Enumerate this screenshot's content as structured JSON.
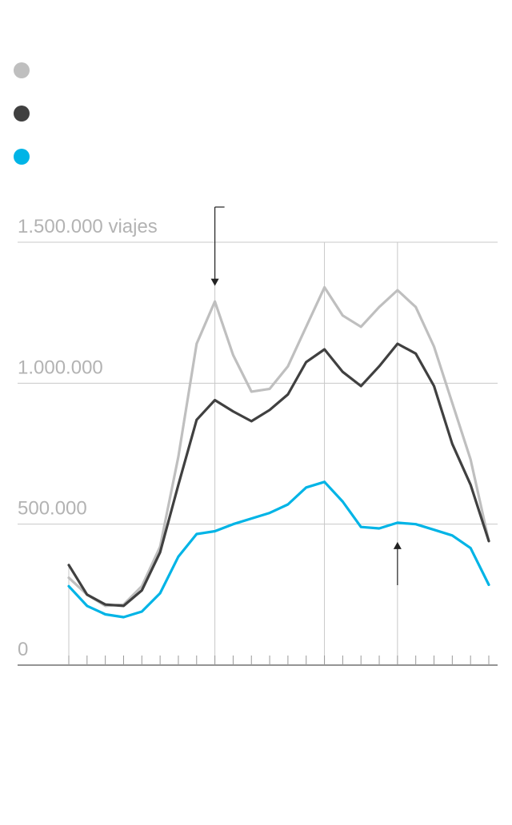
{
  "legend": {
    "items": [
      {
        "color": "#bfbfbf",
        "label": ""
      },
      {
        "color": "#404040",
        "label": ""
      },
      {
        "color": "#00b4e6",
        "label": ""
      }
    ]
  },
  "chart_data": {
    "type": "line",
    "title": "",
    "xlabel": "",
    "ylabel": "",
    "ylim": [
      0,
      1500000
    ],
    "yticks": [
      {
        "value": 0,
        "label": "0"
      },
      {
        "value": 500000,
        "label": "500.000"
      },
      {
        "value": 1000000,
        "label": "1.000.000"
      },
      {
        "value": 1500000,
        "label": "1.500.000 viajes"
      }
    ],
    "x": [
      1,
      2,
      3,
      4,
      5,
      6,
      7,
      8,
      9,
      10,
      11,
      12,
      13,
      14,
      15,
      16,
      17,
      18,
      19,
      20,
      21,
      22,
      23,
      24
    ],
    "series": [
      {
        "color": "#bfbfbf",
        "values": [
          310000,
          250000,
          210000,
          215000,
          280000,
          420000,
          740000,
          1140000,
          1290000,
          1100000,
          970000,
          980000,
          1060000,
          1200000,
          1340000,
          1240000,
          1200000,
          1270000,
          1330000,
          1270000,
          1130000,
          930000,
          730000,
          440000
        ]
      },
      {
        "color": "#404040",
        "values": [
          355000,
          250000,
          215000,
          210000,
          265000,
          400000,
          640000,
          870000,
          940000,
          900000,
          865000,
          905000,
          960000,
          1075000,
          1120000,
          1040000,
          990000,
          1060000,
          1140000,
          1105000,
          990000,
          785000,
          640000,
          440000
        ]
      },
      {
        "color": "#00b4e6",
        "values": [
          280000,
          210000,
          180000,
          170000,
          190000,
          255000,
          385000,
          465000,
          475000,
          500000,
          520000,
          540000,
          570000,
          630000,
          650000,
          580000,
          490000,
          485000,
          505000,
          500000,
          480000,
          460000,
          415000,
          285000
        ]
      }
    ],
    "annotations": [
      {
        "type": "arrow-down",
        "x": 9,
        "value": 1345000
      },
      {
        "type": "arrow-up",
        "x": 19,
        "value": 505000
      }
    ]
  }
}
